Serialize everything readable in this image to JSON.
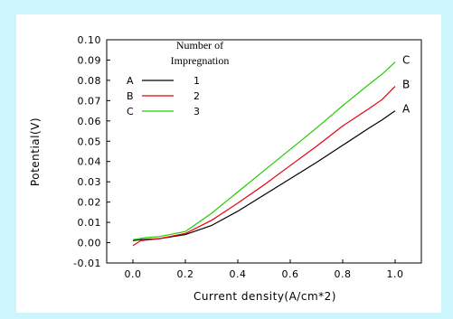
{
  "chart_data": {
    "type": "line",
    "title": "",
    "xlabel": "Current density(A/cm*2)",
    "ylabel": "Potential(V)",
    "xlim": [
      -0.1,
      1.1
    ],
    "ylim": [
      -0.01,
      0.1
    ],
    "xticks": [
      "0.0",
      "0.2",
      "0.4",
      "0.6",
      "0.8",
      "1.0"
    ],
    "yticks": [
      "-0.01",
      "0.00",
      "0.01",
      "0.02",
      "0.03",
      "0.04",
      "0.05",
      "0.06",
      "0.07",
      "0.08",
      "0.09",
      "0.10"
    ],
    "grid": false,
    "legend_position": "top-left",
    "legend_title": "Number of Impregnation",
    "legend_title_lines": [
      "Number of",
      "Impregnation"
    ],
    "series": [
      {
        "name": "A",
        "legend_value": "1",
        "color": "#000000",
        "x": [
          0.0,
          0.03,
          0.1,
          0.2,
          0.3,
          0.4,
          0.5,
          0.6,
          0.7,
          0.8,
          0.9,
          0.95,
          1.0
        ],
        "y": [
          0.001,
          0.0015,
          0.002,
          0.004,
          0.0085,
          0.0155,
          0.0235,
          0.0315,
          0.0395,
          0.048,
          0.0565,
          0.0605,
          0.065
        ]
      },
      {
        "name": "B",
        "legend_value": "2",
        "color": "#e8000b",
        "x": [
          0.0,
          0.03,
          0.1,
          0.2,
          0.3,
          0.4,
          0.5,
          0.6,
          0.7,
          0.8,
          0.9,
          0.95,
          1.0
        ],
        "y": [
          -0.0015,
          0.001,
          0.002,
          0.0045,
          0.011,
          0.0195,
          0.0285,
          0.038,
          0.0475,
          0.0575,
          0.066,
          0.0705,
          0.077
        ]
      },
      {
        "name": "C",
        "legend_value": "3",
        "color": "#22cc00",
        "x": [
          0.0,
          0.05,
          0.1,
          0.2,
          0.3,
          0.4,
          0.5,
          0.6,
          0.7,
          0.8,
          0.9,
          0.95,
          1.0
        ],
        "y": [
          0.0015,
          0.0025,
          0.003,
          0.0055,
          0.0145,
          0.025,
          0.0355,
          0.046,
          0.0565,
          0.0675,
          0.078,
          0.083,
          0.089
        ]
      }
    ]
  }
}
